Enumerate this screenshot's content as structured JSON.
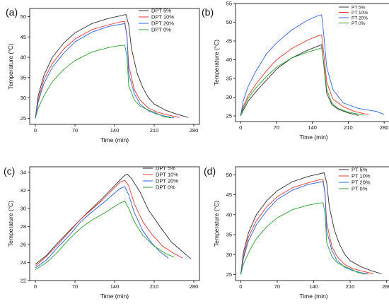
{
  "colors": {
    "s0": "#303030",
    "s1": "#e8372d",
    "s2": "#2a63e6",
    "s3": "#2ca02c",
    "axis": "#000000"
  },
  "chart_data": [
    {
      "panel_label": "(a)",
      "type": "line",
      "xlabel": "Time (min)",
      "ylabel": "Temperature (°C)",
      "xlim": [
        -10,
        290
      ],
      "ylim": [
        23.5,
        52
      ],
      "xticks": [
        0,
        70,
        140,
        210,
        280
      ],
      "yticks": [
        25,
        30,
        35,
        40,
        45,
        50
      ],
      "legend_position": "top-right",
      "series": [
        {
          "name": "DPT 5%",
          "x": [
            0,
            5,
            15,
            30,
            50,
            70,
            100,
            130,
            150,
            160,
            165,
            170,
            180,
            190,
            200,
            210,
            230,
            250,
            270
          ],
          "y": [
            25,
            30.5,
            35.5,
            40,
            43.5,
            46,
            48.3,
            49.6,
            50.2,
            50.5,
            48,
            42,
            36,
            32.5,
            30,
            28.5,
            27,
            26,
            25.2
          ]
        },
        {
          "name": "DPT 10%",
          "x": [
            0,
            5,
            15,
            30,
            50,
            70,
            100,
            130,
            150,
            158,
            162,
            165,
            175,
            185,
            200,
            215,
            235,
            255
          ],
          "y": [
            25,
            29.5,
            34.5,
            38.5,
            42,
            44.5,
            46.8,
            48,
            48.7,
            48.8,
            45,
            38,
            32,
            29.5,
            27.5,
            26.5,
            25.8,
            25.2
          ]
        },
        {
          "name": "DPT 20%",
          "x": [
            0,
            5,
            15,
            30,
            50,
            70,
            100,
            130,
            150,
            158,
            162,
            165,
            175,
            185,
            200,
            215,
            230,
            245
          ],
          "y": [
            25,
            29,
            33.5,
            37.5,
            41,
            43.8,
            46.2,
            47.6,
            48.1,
            48.3,
            45,
            36,
            31,
            28.5,
            26.8,
            26,
            25.5,
            25.1
          ]
        },
        {
          "name": "DPT 0%",
          "x": [
            0,
            5,
            15,
            30,
            50,
            70,
            100,
            130,
            150,
            158,
            162,
            165,
            175,
            185,
            200,
            210,
            225,
            240
          ],
          "y": [
            25,
            27.5,
            30.5,
            34,
            37,
            39.2,
            41.3,
            42.4,
            42.9,
            43,
            40,
            33,
            29.5,
            28,
            27,
            26.5,
            25.5,
            25.1
          ]
        }
      ]
    },
    {
      "panel_label": "(b)",
      "type": "line",
      "xlabel": "Time (min)",
      "ylabel": "Temperature (°C)",
      "xlim": [
        -10,
        295
      ],
      "ylim": [
        23.5,
        55
      ],
      "xticks": [
        0,
        70,
        140,
        210,
        280
      ],
      "yticks": [
        25,
        30,
        35,
        40,
        45,
        50,
        55
      ],
      "legend_position": "top-right",
      "series": [
        {
          "name": "PT 5%",
          "x": [
            0,
            5,
            15,
            30,
            50,
            70,
            100,
            130,
            150,
            158,
            162,
            168,
            178,
            190,
            210,
            230
          ],
          "y": [
            25,
            26.5,
            29,
            31.5,
            34.5,
            37.5,
            40.5,
            42.5,
            43.6,
            44,
            39,
            31,
            28,
            26.8,
            25.8,
            25.1
          ]
        },
        {
          "name": "PT 10%",
          "x": [
            0,
            5,
            15,
            30,
            50,
            70,
            100,
            130,
            150,
            158,
            162,
            168,
            180,
            200,
            220,
            250
          ],
          "y": [
            25,
            27.5,
            30.5,
            33.5,
            37,
            40,
            43,
            45.2,
            46.3,
            46.6,
            42,
            34,
            29.5,
            27.5,
            26.3,
            25.3
          ]
        },
        {
          "name": "PT 20%",
          "x": [
            0,
            5,
            15,
            30,
            50,
            70,
            100,
            130,
            150,
            158,
            162,
            168,
            180,
            200,
            230,
            265,
            280
          ],
          "y": [
            25,
            29,
            33,
            37,
            41.5,
            44.5,
            48,
            50.5,
            51.7,
            52,
            47,
            38,
            32,
            28.5,
            27,
            26.2,
            25.4
          ]
        },
        {
          "name": "PT 0%",
          "x": [
            0,
            5,
            15,
            30,
            50,
            70,
            100,
            130,
            150,
            158,
            162,
            168,
            178,
            190,
            210,
            240
          ],
          "y": [
            25,
            27,
            29.8,
            32.5,
            35.5,
            38,
            40.5,
            42,
            42.8,
            43.2,
            39.5,
            32,
            28.5,
            27,
            26,
            25.2
          ]
        }
      ]
    },
    {
      "panel_label": "(c)",
      "type": "line",
      "xlabel": "Time (min)",
      "ylabel": "Temperature (°C)",
      "xlim": [
        -10,
        290
      ],
      "ylim": [
        22,
        34.6
      ],
      "xticks": [
        0,
        70,
        140,
        210,
        280
      ],
      "yticks": [
        22,
        24,
        26,
        28,
        30,
        32,
        34
      ],
      "legend_position": "top-right",
      "series": [
        {
          "name": "DPT 5%",
          "x": [
            0,
            20,
            40,
            60,
            80,
            100,
            120,
            140,
            155,
            162,
            170,
            185,
            200,
            220,
            240,
            260,
            275
          ],
          "y": [
            23.8,
            24.8,
            26.2,
            27.5,
            28.8,
            30,
            31.2,
            32.5,
            33.5,
            33.8,
            33.3,
            31.8,
            29.8,
            28,
            26.3,
            25.2,
            24.4
          ]
        },
        {
          "name": "DPT 10%",
          "x": [
            0,
            20,
            40,
            60,
            80,
            100,
            120,
            140,
            150,
            158,
            165,
            175,
            190,
            205,
            225,
            245,
            260
          ],
          "y": [
            23.6,
            24.7,
            26,
            27.4,
            28.8,
            29.9,
            31,
            32.3,
            32.9,
            33.1,
            32.5,
            30.5,
            28.5,
            27.2,
            25.8,
            25,
            24.5
          ]
        },
        {
          "name": "DPT 20%",
          "x": [
            0,
            20,
            40,
            60,
            80,
            100,
            120,
            140,
            150,
            158,
            165,
            175,
            190,
            205,
            220,
            235
          ],
          "y": [
            23.4,
            24.3,
            25.7,
            27,
            28.5,
            29.6,
            30.6,
            31.7,
            32.2,
            32.4,
            31.5,
            29.5,
            27.5,
            26.2,
            25.2,
            24.5
          ]
        },
        {
          "name": "DPT 0%",
          "x": [
            0,
            20,
            40,
            60,
            80,
            100,
            120,
            140,
            150,
            158,
            165,
            175,
            190,
            210,
            230,
            245
          ],
          "y": [
            23.2,
            24,
            25.2,
            26.6,
            27.8,
            28.7,
            29.4,
            30.2,
            30.6,
            30.8,
            30,
            28.5,
            27,
            25.8,
            25,
            24.6
          ]
        }
      ]
    },
    {
      "panel_label": "(d)",
      "type": "line",
      "xlabel": "Time (min)",
      "ylabel": "Temperature (°C)",
      "xlim": [
        -10,
        290
      ],
      "ylim": [
        23.5,
        52
      ],
      "xticks": [
        0,
        70,
        140,
        210,
        280
      ],
      "yticks": [
        25,
        30,
        35,
        40,
        45,
        50
      ],
      "legend_position": "top-right",
      "series": [
        {
          "name": "PT 5%",
          "x": [
            0,
            5,
            15,
            30,
            50,
            70,
            100,
            130,
            150,
            160,
            165,
            170,
            180,
            190,
            200,
            210,
            230,
            250,
            270
          ],
          "y": [
            25,
            30.5,
            35.5,
            40,
            43.5,
            46,
            48.3,
            49.6,
            50.2,
            50.5,
            48,
            42,
            36,
            32.5,
            30,
            28.5,
            27,
            26,
            25.2
          ]
        },
        {
          "name": "PT 10%",
          "x": [
            0,
            5,
            15,
            30,
            50,
            70,
            100,
            130,
            150,
            158,
            162,
            165,
            175,
            185,
            200,
            215,
            235,
            255
          ],
          "y": [
            25,
            29.5,
            34.5,
            38.5,
            42,
            44.5,
            46.8,
            48,
            48.7,
            48.8,
            45,
            38,
            32,
            29.5,
            27.5,
            26.5,
            25.8,
            25.2
          ]
        },
        {
          "name": "PT 20%",
          "x": [
            0,
            5,
            15,
            30,
            50,
            70,
            100,
            130,
            150,
            158,
            162,
            165,
            175,
            185,
            200,
            215,
            230,
            245
          ],
          "y": [
            25,
            29,
            33.5,
            37.5,
            41,
            43.8,
            46.2,
            47.6,
            48.1,
            48.3,
            45,
            36,
            31,
            28.5,
            26.8,
            26,
            25.5,
            25.1
          ]
        },
        {
          "name": "PT 0%",
          "x": [
            0,
            5,
            15,
            30,
            50,
            70,
            100,
            130,
            150,
            158,
            162,
            165,
            175,
            185,
            200,
            210,
            225,
            240
          ],
          "y": [
            25,
            27.5,
            30.5,
            34,
            37,
            39.2,
            41.3,
            42.4,
            42.9,
            43,
            40,
            33,
            29.5,
            28,
            27,
            26.5,
            25.5,
            25.1
          ]
        }
      ]
    }
  ]
}
